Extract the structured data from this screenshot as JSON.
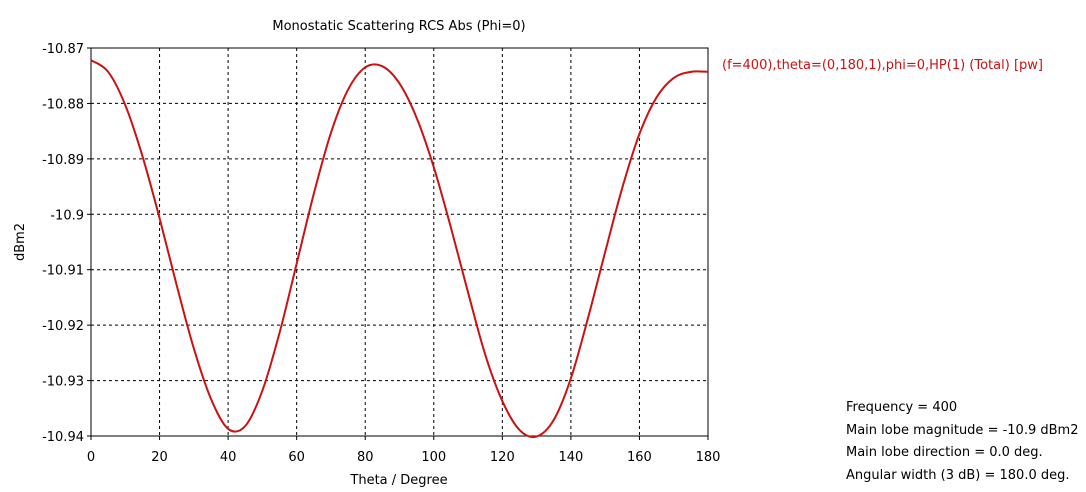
{
  "chart_data": {
    "type": "line",
    "title": "Monostatic Scattering RCS Abs (Phi=0)",
    "xlabel": "Theta / Degree",
    "ylabel": "dBm2",
    "xlim": [
      0,
      180
    ],
    "ylim": [
      -10.94,
      -10.87
    ],
    "xticks": [
      0,
      20,
      40,
      60,
      80,
      100,
      120,
      140,
      160,
      180
    ],
    "yticks": [
      -10.87,
      -10.88,
      -10.89,
      -10.9,
      -10.91,
      -10.92,
      -10.93,
      -10.94
    ],
    "xtick_labels": [
      "0",
      "20",
      "40",
      "60",
      "80",
      "100",
      "120",
      "140",
      "160",
      "180"
    ],
    "ytick_labels": [
      "-10.87",
      "-10.88",
      "-10.89",
      "-10.9",
      "-10.91",
      "-10.92",
      "-10.93",
      "-10.94"
    ],
    "grid": true,
    "legend_position": "right-top",
    "series": [
      {
        "name": "(f=400),theta=(0,180,1),phi=0,HP(1) (Total) [pw]",
        "color": "#cc1111",
        "x": [
          0,
          5,
          10,
          15,
          20,
          25,
          30,
          35,
          40,
          45,
          50,
          55,
          60,
          65,
          70,
          75,
          80,
          85,
          90,
          95,
          100,
          105,
          110,
          115,
          120,
          125,
          130,
          135,
          140,
          145,
          150,
          155,
          160,
          165,
          170,
          175,
          180
        ],
        "y": [
          -10.8722,
          -10.8743,
          -10.8803,
          -10.8895,
          -10.9007,
          -10.9128,
          -10.9242,
          -10.9333,
          -10.9387,
          -10.9382,
          -10.9318,
          -10.9214,
          -10.9089,
          -10.8963,
          -10.8853,
          -10.8775,
          -10.8735,
          -10.8733,
          -10.8764,
          -10.8826,
          -10.8915,
          -10.9024,
          -10.9141,
          -10.9253,
          -10.9337,
          -10.9389,
          -10.9401,
          -10.9371,
          -10.9296,
          -10.9187,
          -10.9068,
          -10.8952,
          -10.8855,
          -10.8789,
          -10.8754,
          -10.8743,
          -10.8743
        ]
      }
    ]
  },
  "info": {
    "frequency": "Frequency = 400",
    "main_lobe_magnitude": "Main lobe magnitude = -10.9 dBm2",
    "main_lobe_direction": "Main lobe direction = 0.0 deg.",
    "angular_width": "Angular width (3 dB) = 180.0 deg."
  }
}
